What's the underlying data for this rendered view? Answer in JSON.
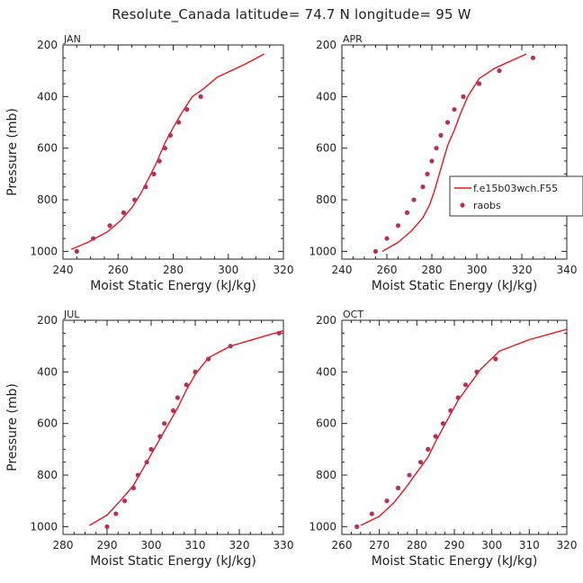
{
  "figure": {
    "title": "Resolute_Canada   latitude= 74.7 N longitude= 95 W"
  },
  "chart_data": [
    {
      "type": "line",
      "panel_label": "JAN",
      "xlabel": "Moist Static Energy (kJ/kg)",
      "ylabel": "Pressure (mb)",
      "xlim": [
        240,
        320
      ],
      "ylim": [
        1030,
        200
      ],
      "xticks": [
        240,
        260,
        280,
        300,
        320
      ],
      "yticks": [
        200,
        400,
        600,
        800,
        1000
      ],
      "model": {
        "name": "f.e15b03wch.F55",
        "color": "#e8141e",
        "points": [
          [
            243,
            992
          ],
          [
            249,
            965
          ],
          [
            256,
            925
          ],
          [
            261,
            880
          ],
          [
            265,
            830
          ],
          [
            268,
            780
          ],
          [
            271,
            720
          ],
          [
            274,
            655
          ],
          [
            277,
            580
          ],
          [
            280,
            520
          ],
          [
            283,
            465
          ],
          [
            287,
            400
          ],
          [
            291,
            370
          ],
          [
            296,
            325
          ],
          [
            306,
            275
          ],
          [
            313,
            235
          ]
        ]
      },
      "obs": {
        "name": "raobs",
        "color": "#b5305a",
        "points": [
          [
            245,
            1000
          ],
          [
            251,
            950
          ],
          [
            257,
            900
          ],
          [
            262,
            850
          ],
          [
            266,
            800
          ],
          [
            270,
            750
          ],
          [
            273,
            700
          ],
          [
            275,
            650
          ],
          [
            277,
            600
          ],
          [
            279,
            550
          ],
          [
            282,
            500
          ],
          [
            285,
            450
          ],
          [
            290,
            400
          ]
        ]
      }
    },
    {
      "type": "line",
      "panel_label": "APR",
      "xlabel": "Moist Static Energy (kJ/kg)",
      "ylabel": "",
      "xlim": [
        240,
        340
      ],
      "ylim": [
        1030,
        200
      ],
      "xticks": [
        240,
        260,
        280,
        300,
        320,
        340
      ],
      "yticks": [
        200,
        400,
        600,
        800,
        1000
      ],
      "legend": {
        "location": "right",
        "entries": [
          "f.e15b03wch.F55",
          "raobs"
        ]
      },
      "model": {
        "name": "f.e15b03wch.F55",
        "color": "#e8141e",
        "points": [
          [
            258,
            1000
          ],
          [
            265,
            965
          ],
          [
            271,
            920
          ],
          [
            276,
            870
          ],
          [
            279,
            820
          ],
          [
            281,
            770
          ],
          [
            283,
            710
          ],
          [
            285,
            650
          ],
          [
            287,
            590
          ],
          [
            290,
            530
          ],
          [
            293,
            460
          ],
          [
            296,
            400
          ],
          [
            301,
            330
          ],
          [
            308,
            290
          ],
          [
            322,
            235
          ]
        ]
      },
      "obs": {
        "name": "raobs",
        "color": "#b5305a",
        "points": [
          [
            255,
            1000
          ],
          [
            260,
            950
          ],
          [
            265,
            900
          ],
          [
            269,
            850
          ],
          [
            272,
            800
          ],
          [
            276,
            750
          ],
          [
            278,
            700
          ],
          [
            280,
            650
          ],
          [
            282,
            600
          ],
          [
            284,
            550
          ],
          [
            287,
            500
          ],
          [
            290,
            450
          ],
          [
            294,
            400
          ],
          [
            301,
            350
          ],
          [
            310,
            300
          ],
          [
            325,
            250
          ]
        ]
      }
    },
    {
      "type": "line",
      "panel_label": "JUL",
      "xlabel": "Moist Static Energy (kJ/kg)",
      "ylabel": "Pressure (mb)",
      "xlim": [
        280,
        330
      ],
      "ylim": [
        1030,
        200
      ],
      "xticks": [
        280,
        290,
        300,
        310,
        320,
        330
      ],
      "yticks": [
        200,
        400,
        600,
        800,
        1000
      ],
      "model": {
        "name": "f.e15b03wch.F55",
        "color": "#e8141e",
        "points": [
          [
            286,
            995
          ],
          [
            290,
            955
          ],
          [
            293,
            900
          ],
          [
            296,
            840
          ],
          [
            298,
            780
          ],
          [
            300,
            720
          ],
          [
            302,
            660
          ],
          [
            304,
            600
          ],
          [
            306,
            540
          ],
          [
            308,
            470
          ],
          [
            310,
            410
          ],
          [
            313,
            345
          ],
          [
            318,
            300
          ],
          [
            322,
            280
          ],
          [
            330,
            240
          ]
        ]
      },
      "obs": {
        "name": "raobs",
        "color": "#b5305a",
        "points": [
          [
            290,
            1000
          ],
          [
            292,
            950
          ],
          [
            294,
            900
          ],
          [
            296,
            850
          ],
          [
            297,
            800
          ],
          [
            299,
            750
          ],
          [
            300,
            700
          ],
          [
            302,
            650
          ],
          [
            303,
            600
          ],
          [
            305,
            550
          ],
          [
            306,
            500
          ],
          [
            308,
            450
          ],
          [
            310,
            400
          ],
          [
            313,
            350
          ],
          [
            318,
            300
          ],
          [
            329,
            250
          ]
        ]
      }
    },
    {
      "type": "line",
      "panel_label": "OCT",
      "xlabel": "Moist Static Energy (kJ/kg)",
      "ylabel": "",
      "xlim": [
        260,
        320
      ],
      "ylim": [
        1030,
        200
      ],
      "xticks": [
        260,
        270,
        280,
        290,
        300,
        310,
        320
      ],
      "yticks": [
        200,
        400,
        600,
        800,
        1000
      ],
      "model": {
        "name": "f.e15b03wch.F55",
        "color": "#e8141e",
        "points": [
          [
            265,
            995
          ],
          [
            270,
            960
          ],
          [
            274,
            905
          ],
          [
            277,
            850
          ],
          [
            280,
            790
          ],
          [
            283,
            730
          ],
          [
            285,
            670
          ],
          [
            288,
            590
          ],
          [
            291,
            510
          ],
          [
            294,
            450
          ],
          [
            297,
            390
          ],
          [
            302,
            320
          ],
          [
            310,
            275
          ],
          [
            320,
            235
          ]
        ]
      },
      "obs": {
        "name": "raobs",
        "color": "#b5305a",
        "points": [
          [
            264,
            1000
          ],
          [
            268,
            950
          ],
          [
            272,
            900
          ],
          [
            275,
            850
          ],
          [
            278,
            800
          ],
          [
            281,
            750
          ],
          [
            283,
            700
          ],
          [
            285,
            650
          ],
          [
            287,
            600
          ],
          [
            289,
            550
          ],
          [
            291,
            500
          ],
          [
            293,
            450
          ],
          [
            296,
            400
          ],
          [
            301,
            350
          ]
        ]
      }
    }
  ]
}
